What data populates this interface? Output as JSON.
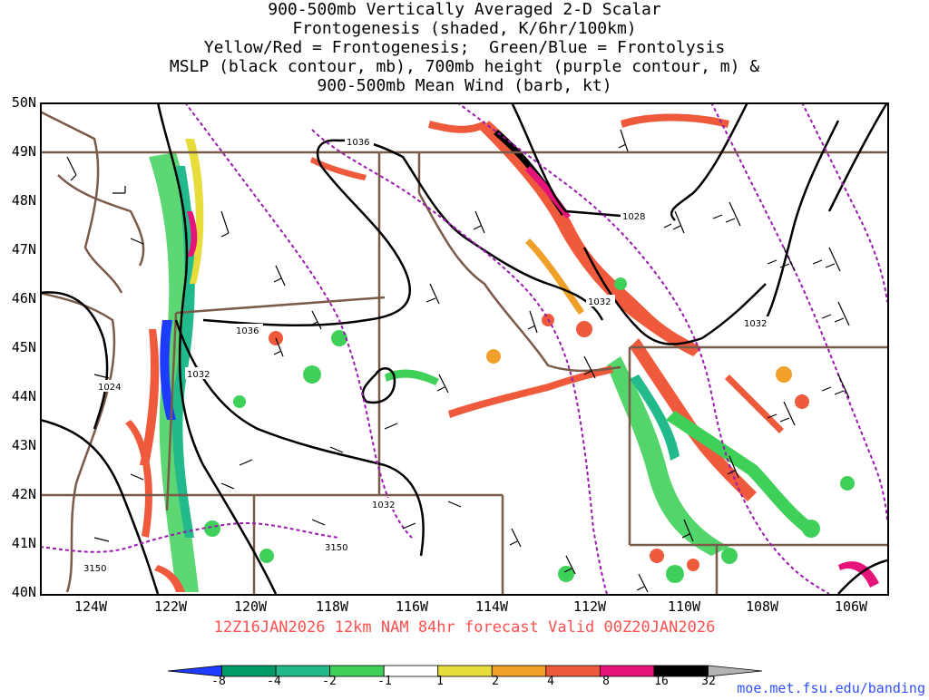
{
  "title": {
    "line1": "900-500mb Vertically Averaged 2-D Scalar",
    "line2": "Frontogenesis (shaded, K/6hr/100km)",
    "line3": "Yellow/Red = Frontogenesis;  Green/Blue = Frontolysis",
    "line4": "MSLP (black contour, mb), 700mb height (purple contour, m) &",
    "line5": "900-500mb Mean Wind (barb, kt)"
  },
  "lat_labels": [
    "50N",
    "49N",
    "48N",
    "47N",
    "46N",
    "45N",
    "44N",
    "43N",
    "42N",
    "41N",
    "40N"
  ],
  "lon_labels": [
    "124W",
    "122W",
    "120W",
    "118W",
    "116W",
    "114W",
    "112W",
    "110W",
    "108W",
    "106W"
  ],
  "contour_labels": {
    "mslp": [
      "1036",
      "1028",
      "1032",
      "1032",
      "1036",
      "1032",
      "1024",
      "1032"
    ],
    "height": [
      "3150",
      "3150"
    ]
  },
  "valid_line": "12Z16JAN2026 12km NAM 84hr forecast Valid 00Z20JAN2026",
  "colorbar": {
    "ticks": [
      "-8",
      "-4",
      "-2",
      "-1",
      "1",
      "2",
      "4",
      "8",
      "16",
      "32"
    ],
    "colors": [
      "#1d3cff",
      "#009a64",
      "#22b98c",
      "#3fd05a",
      "#ffffff",
      "#e8dc3a",
      "#f0a028",
      "#f05a3c",
      "#e6147a",
      "#000000",
      "#b4b4b4"
    ]
  },
  "credit": "moe.met.fsu.edu/banding"
}
